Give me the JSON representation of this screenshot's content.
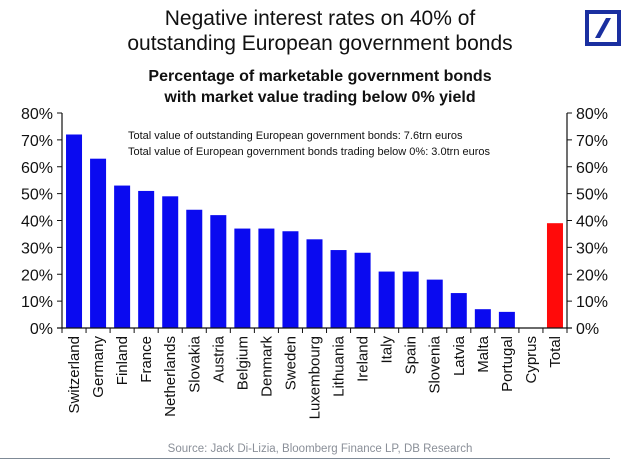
{
  "header": {
    "title_lines": [
      "Negative interest rates on 40% of",
      "outstanding European government bonds"
    ],
    "logo": "deutsche-bank-logo",
    "logo_color": "#1a2fa0"
  },
  "notes": [
    "Total value of outstanding European government bonds: 7.6trn euros",
    "Total value of European government bonds trading below 0%: 3.0trn euros"
  ],
  "source": "Source: Jack Di-Lizia, Bloomberg Finance LP, DB Research",
  "chart_data": {
    "type": "bar",
    "title": "Percentage of marketable government bonds",
    "subtitle": "with market value trading below 0% yield",
    "xlabel": "",
    "ylabel": "",
    "ylim": [
      0,
      80
    ],
    "yticks": [
      "0%",
      "10%",
      "20%",
      "30%",
      "40%",
      "50%",
      "60%",
      "70%",
      "80%"
    ],
    "ytick_values": [
      0,
      10,
      20,
      30,
      40,
      50,
      60,
      70,
      80
    ],
    "y_axes": [
      "left",
      "right"
    ],
    "grid": false,
    "categories": [
      "Switzerland",
      "Germany",
      "Finland",
      "France",
      "Netherlands",
      "Slovakia",
      "Austria",
      "Belgium",
      "Denmark",
      "Sweden",
      "Luxembourg",
      "Lithuania",
      "Ireland",
      "Italy",
      "Spain",
      "Slovenia",
      "Latvia",
      "Malta",
      "Portugal",
      "Cyprus",
      "Total"
    ],
    "values": [
      72,
      63,
      53,
      51,
      49,
      44,
      42,
      37,
      37,
      36,
      33,
      29,
      28,
      21,
      21,
      18,
      13,
      7,
      6,
      0,
      39
    ],
    "colors": {
      "country": "#0a0af0",
      "total": "#ff0a0a"
    },
    "highlight_category": "Total"
  }
}
